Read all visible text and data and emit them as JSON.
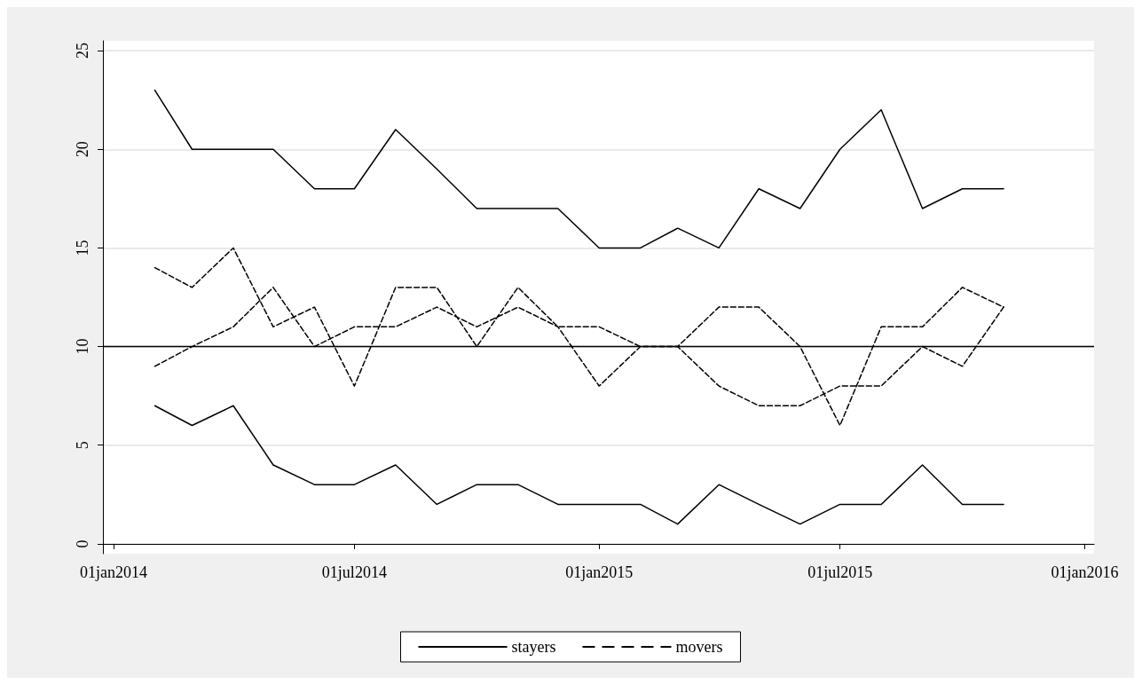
{
  "chart_data": {
    "type": "line",
    "x": [
      "2014-02-01",
      "2014-03-01",
      "2014-04-01",
      "2014-05-01",
      "2014-06-01",
      "2014-07-01",
      "2014-08-01",
      "2014-09-01",
      "2014-10-01",
      "2014-11-01",
      "2014-12-01",
      "2015-01-01",
      "2015-02-01",
      "2015-03-01",
      "2015-04-01",
      "2015-05-01",
      "2015-06-01",
      "2015-07-01",
      "2015-08-01",
      "2015-09-01",
      "2015-10-01",
      "2015-11-01"
    ],
    "series": [
      {
        "name": "stayers",
        "color": "#000000",
        "line_style": "solid",
        "values": [
          23,
          20,
          20,
          20,
          18,
          18,
          21,
          19,
          17,
          17,
          17,
          15,
          15,
          16,
          15,
          18,
          17,
          20,
          22,
          17,
          18,
          18
        ]
      },
      {
        "color": "#000000",
        "line_style": "solid",
        "values": [
          7,
          6,
          7,
          4,
          3,
          3,
          4,
          2,
          3,
          3,
          2,
          2,
          2,
          1,
          3,
          2,
          1,
          2,
          2,
          4,
          2,
          2
        ]
      },
      {
        "name": "movers",
        "color": "#000000",
        "line_style": "dashed",
        "values": [
          14,
          13,
          15,
          11,
          12,
          8,
          13,
          13,
          10,
          13,
          11,
          11,
          10,
          10,
          12,
          12,
          10,
          6,
          11,
          11,
          13,
          12
        ]
      },
      {
        "color": "#000000",
        "line_style": "dashed",
        "values": [
          9,
          10,
          11,
          13,
          10,
          11,
          11,
          12,
          11,
          12,
          11,
          8,
          10,
          10,
          8,
          7,
          7,
          8,
          8,
          10,
          9,
          12
        ]
      }
    ],
    "xlim": [
      "2013-12-24",
      "2016-01-08"
    ],
    "xticks": [
      {
        "value": "2014-01-01",
        "label": "01jan2014"
      },
      {
        "value": "2014-07-01",
        "label": "01jul2014"
      },
      {
        "value": "2015-01-01",
        "label": "01jan2015"
      },
      {
        "value": "2015-07-01",
        "label": "01jul2015"
      },
      {
        "value": "2016-01-01",
        "label": "01jan2016"
      }
    ],
    "ylim": [
      -0.5,
      25.5
    ],
    "yticks": [
      0,
      5,
      10,
      15,
      20,
      25
    ],
    "ref_lines": [
      {
        "axis": "y",
        "value": 10,
        "color": "#000000",
        "line_style": "solid"
      }
    ],
    "grid": "y",
    "legend": "bottom",
    "marker": "none"
  }
}
